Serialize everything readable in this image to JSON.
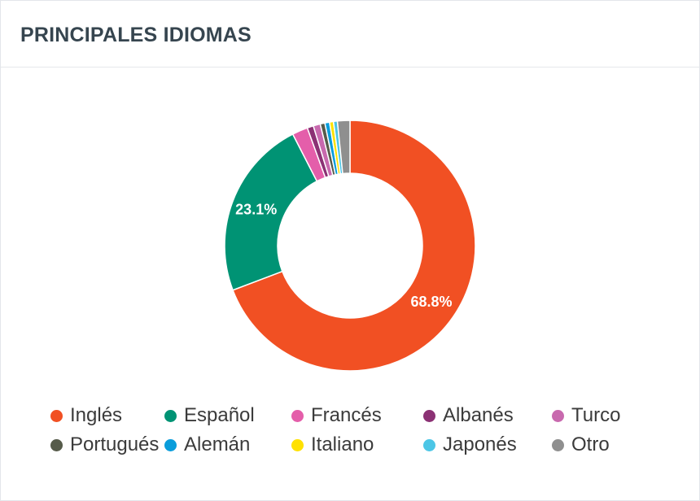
{
  "card": {
    "title": "PRINCIPALES IDIOMAS"
  },
  "chart_data": {
    "type": "pie",
    "title": "PRINCIPALES IDIOMAS",
    "donut": true,
    "legend_position": "bottom",
    "series": [
      {
        "name": "Inglés",
        "value": 68.8,
        "color": "#f15023",
        "label": "68.8%"
      },
      {
        "name": "Español",
        "value": 23.1,
        "color": "#009374",
        "label": "23.1%"
      },
      {
        "name": "Francés",
        "value": 2.0,
        "color": "#e45eaa",
        "label": ""
      },
      {
        "name": "Albanés",
        "value": 0.8,
        "color": "#8b3174",
        "label": ""
      },
      {
        "name": "Turco",
        "value": 0.9,
        "color": "#c869ae",
        "label": ""
      },
      {
        "name": "Portugués",
        "value": 0.6,
        "color": "#565b4a",
        "label": ""
      },
      {
        "name": "Alemán",
        "value": 0.6,
        "color": "#0a9ddb",
        "label": ""
      },
      {
        "name": "Italiano",
        "value": 0.5,
        "color": "#ffe100",
        "label": ""
      },
      {
        "name": "Japonés",
        "value": 0.5,
        "color": "#4cc6e6",
        "label": ""
      },
      {
        "name": "Otro",
        "value": 1.6,
        "color": "#8f8f8f",
        "label": ""
      }
    ]
  }
}
